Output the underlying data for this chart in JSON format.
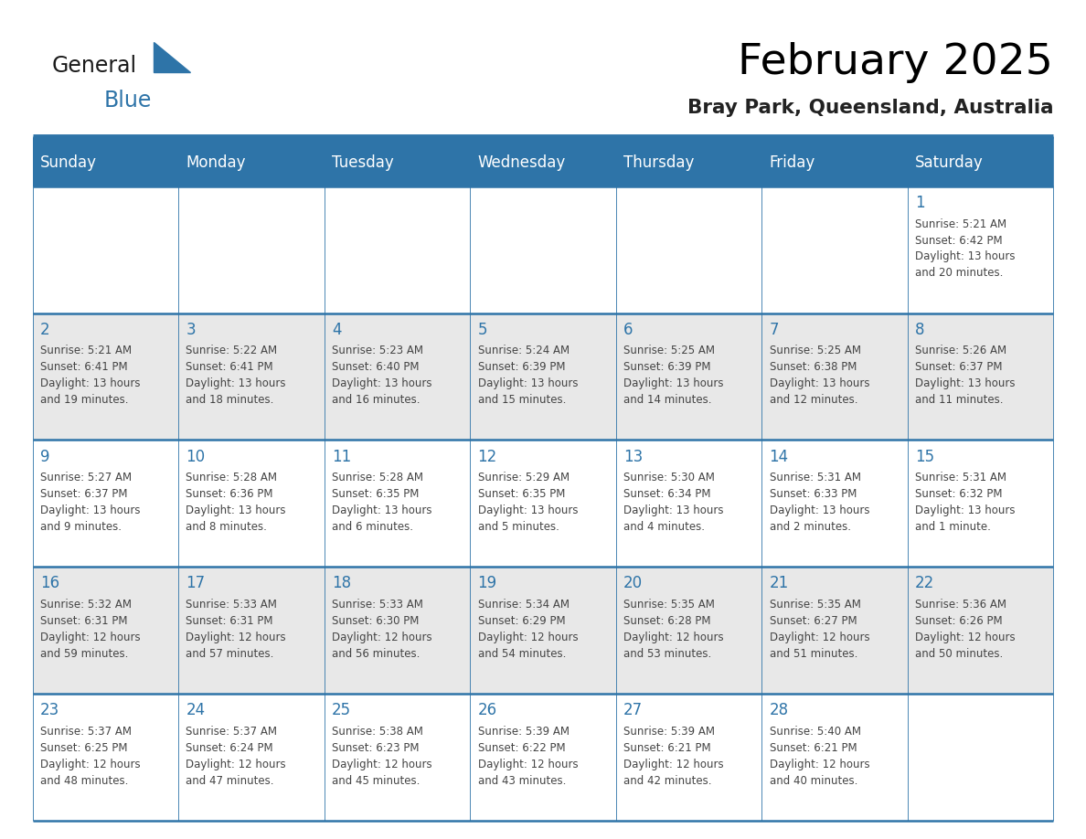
{
  "title": "February 2025",
  "subtitle": "Bray Park, Queensland, Australia",
  "days_of_week": [
    "Sunday",
    "Monday",
    "Tuesday",
    "Wednesday",
    "Thursday",
    "Friday",
    "Saturday"
  ],
  "header_bg": "#2E74A8",
  "header_text": "#FFFFFF",
  "cell_bg_even": "#FFFFFF",
  "cell_bg_odd": "#E8E8E8",
  "day_number_color": "#2E74A8",
  "text_color": "#444444",
  "border_color": "#2E74A8",
  "logo_dark_color": "#1a1a1a",
  "logo_blue_color": "#2E74A8",
  "weeks": [
    [
      {
        "day": null,
        "sunrise": null,
        "sunset": null,
        "daylight": null
      },
      {
        "day": null,
        "sunrise": null,
        "sunset": null,
        "daylight": null
      },
      {
        "day": null,
        "sunrise": null,
        "sunset": null,
        "daylight": null
      },
      {
        "day": null,
        "sunrise": null,
        "sunset": null,
        "daylight": null
      },
      {
        "day": null,
        "sunrise": null,
        "sunset": null,
        "daylight": null
      },
      {
        "day": null,
        "sunrise": null,
        "sunset": null,
        "daylight": null
      },
      {
        "day": 1,
        "sunrise": "5:21 AM",
        "sunset": "6:42 PM",
        "daylight": "13 hours and 20 minutes."
      }
    ],
    [
      {
        "day": 2,
        "sunrise": "5:21 AM",
        "sunset": "6:41 PM",
        "daylight": "13 hours and 19 minutes."
      },
      {
        "day": 3,
        "sunrise": "5:22 AM",
        "sunset": "6:41 PM",
        "daylight": "13 hours and 18 minutes."
      },
      {
        "day": 4,
        "sunrise": "5:23 AM",
        "sunset": "6:40 PM",
        "daylight": "13 hours and 16 minutes."
      },
      {
        "day": 5,
        "sunrise": "5:24 AM",
        "sunset": "6:39 PM",
        "daylight": "13 hours and 15 minutes."
      },
      {
        "day": 6,
        "sunrise": "5:25 AM",
        "sunset": "6:39 PM",
        "daylight": "13 hours and 14 minutes."
      },
      {
        "day": 7,
        "sunrise": "5:25 AM",
        "sunset": "6:38 PM",
        "daylight": "13 hours and 12 minutes."
      },
      {
        "day": 8,
        "sunrise": "5:26 AM",
        "sunset": "6:37 PM",
        "daylight": "13 hours and 11 minutes."
      }
    ],
    [
      {
        "day": 9,
        "sunrise": "5:27 AM",
        "sunset": "6:37 PM",
        "daylight": "13 hours and 9 minutes."
      },
      {
        "day": 10,
        "sunrise": "5:28 AM",
        "sunset": "6:36 PM",
        "daylight": "13 hours and 8 minutes."
      },
      {
        "day": 11,
        "sunrise": "5:28 AM",
        "sunset": "6:35 PM",
        "daylight": "13 hours and 6 minutes."
      },
      {
        "day": 12,
        "sunrise": "5:29 AM",
        "sunset": "6:35 PM",
        "daylight": "13 hours and 5 minutes."
      },
      {
        "day": 13,
        "sunrise": "5:30 AM",
        "sunset": "6:34 PM",
        "daylight": "13 hours and 4 minutes."
      },
      {
        "day": 14,
        "sunrise": "5:31 AM",
        "sunset": "6:33 PM",
        "daylight": "13 hours and 2 minutes."
      },
      {
        "day": 15,
        "sunrise": "5:31 AM",
        "sunset": "6:32 PM",
        "daylight": "13 hours and 1 minute."
      }
    ],
    [
      {
        "day": 16,
        "sunrise": "5:32 AM",
        "sunset": "6:31 PM",
        "daylight": "12 hours and 59 minutes."
      },
      {
        "day": 17,
        "sunrise": "5:33 AM",
        "sunset": "6:31 PM",
        "daylight": "12 hours and 57 minutes."
      },
      {
        "day": 18,
        "sunrise": "5:33 AM",
        "sunset": "6:30 PM",
        "daylight": "12 hours and 56 minutes."
      },
      {
        "day": 19,
        "sunrise": "5:34 AM",
        "sunset": "6:29 PM",
        "daylight": "12 hours and 54 minutes."
      },
      {
        "day": 20,
        "sunrise": "5:35 AM",
        "sunset": "6:28 PM",
        "daylight": "12 hours and 53 minutes."
      },
      {
        "day": 21,
        "sunrise": "5:35 AM",
        "sunset": "6:27 PM",
        "daylight": "12 hours and 51 minutes."
      },
      {
        "day": 22,
        "sunrise": "5:36 AM",
        "sunset": "6:26 PM",
        "daylight": "12 hours and 50 minutes."
      }
    ],
    [
      {
        "day": 23,
        "sunrise": "5:37 AM",
        "sunset": "6:25 PM",
        "daylight": "12 hours and 48 minutes."
      },
      {
        "day": 24,
        "sunrise": "5:37 AM",
        "sunset": "6:24 PM",
        "daylight": "12 hours and 47 minutes."
      },
      {
        "day": 25,
        "sunrise": "5:38 AM",
        "sunset": "6:23 PM",
        "daylight": "12 hours and 45 minutes."
      },
      {
        "day": 26,
        "sunrise": "5:39 AM",
        "sunset": "6:22 PM",
        "daylight": "12 hours and 43 minutes."
      },
      {
        "day": 27,
        "sunrise": "5:39 AM",
        "sunset": "6:21 PM",
        "daylight": "12 hours and 42 minutes."
      },
      {
        "day": 28,
        "sunrise": "5:40 AM",
        "sunset": "6:21 PM",
        "daylight": "12 hours and 40 minutes."
      },
      {
        "day": null,
        "sunrise": null,
        "sunset": null,
        "daylight": null
      }
    ]
  ]
}
